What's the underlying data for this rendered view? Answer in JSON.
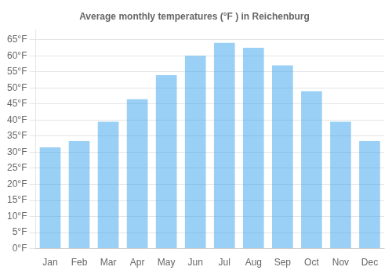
{
  "chart_data": {
    "type": "bar",
    "title": "Average monthly temperatures (°F ) in Reichenburg",
    "categories": [
      "Jan",
      "Feb",
      "Mar",
      "Apr",
      "May",
      "Jun",
      "Jul",
      "Aug",
      "Sep",
      "Oct",
      "Nov",
      "Dec"
    ],
    "values": [
      31.5,
      33.5,
      39.5,
      46.5,
      54.0,
      60.0,
      64.0,
      62.5,
      57.0,
      49.0,
      39.5,
      33.5
    ],
    "ylim": [
      0,
      68
    ],
    "yticks": [
      {
        "value": 0,
        "label": "0°F"
      },
      {
        "value": 5,
        "label": "5°F"
      },
      {
        "value": 10,
        "label": "10°F"
      },
      {
        "value": 15,
        "label": "15°F"
      },
      {
        "value": 20,
        "label": "20°F"
      },
      {
        "value": 25,
        "label": "25°F"
      },
      {
        "value": 30,
        "label": "30°F"
      },
      {
        "value": 35,
        "label": "35°F"
      },
      {
        "value": 40,
        "label": "40°F"
      },
      {
        "value": 45,
        "label": "45°F"
      },
      {
        "value": 50,
        "label": "50°F"
      },
      {
        "value": 55,
        "label": "55°F"
      },
      {
        "value": 60,
        "label": "60°F"
      },
      {
        "value": 65,
        "label": "65°F"
      }
    ],
    "grid": true
  }
}
